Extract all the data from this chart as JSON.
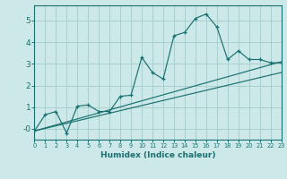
{
  "xlabel": "Humidex (Indice chaleur)",
  "ylabel": "",
  "background_color": "#cce8e8",
  "grid_color": "#aacfcf",
  "line_color": "#1a7070",
  "x_data": [
    0,
    1,
    2,
    3,
    4,
    5,
    6,
    7,
    8,
    9,
    10,
    11,
    12,
    13,
    14,
    15,
    16,
    17,
    18,
    19,
    20,
    21,
    22,
    23
  ],
  "y_main": [
    -0.1,
    0.65,
    0.8,
    -0.2,
    1.05,
    1.1,
    0.8,
    0.8,
    1.5,
    1.55,
    3.3,
    2.6,
    2.3,
    4.3,
    4.45,
    5.1,
    5.3,
    4.7,
    3.2,
    3.6,
    3.2,
    3.2,
    3.05,
    3.05
  ],
  "reg_line1_x": [
    0,
    23
  ],
  "reg_line1_y": [
    -0.1,
    3.1
  ],
  "reg_line2_x": [
    0,
    23
  ],
  "reg_line2_y": [
    -0.1,
    2.6
  ],
  "xlim": [
    0,
    23
  ],
  "ylim": [
    -0.5,
    5.7
  ],
  "yticks": [
    0,
    1,
    2,
    3,
    4,
    5
  ],
  "ytick_labels": [
    "-0",
    "1",
    "2",
    "3",
    "4",
    "5"
  ],
  "xticks": [
    0,
    1,
    2,
    3,
    4,
    5,
    6,
    7,
    8,
    9,
    10,
    11,
    12,
    13,
    14,
    15,
    16,
    17,
    18,
    19,
    20,
    21,
    22,
    23
  ]
}
